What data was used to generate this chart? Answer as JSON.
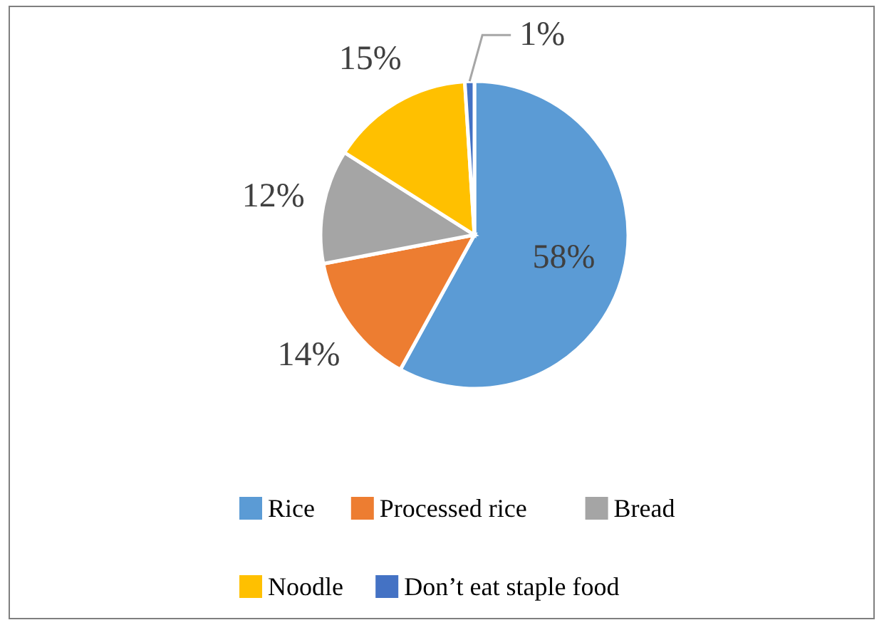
{
  "chart_data": {
    "type": "pie",
    "categories": [
      "Rice",
      "Processed rice",
      "Bread",
      "Noodle",
      "Don’t eat staple food"
    ],
    "values": [
      58,
      14,
      12,
      15,
      1
    ],
    "colors": [
      "#5b9bd5",
      "#ed7d31",
      "#a5a5a5",
      "#ffc000",
      "#4472c4"
    ],
    "value_labels": [
      "58%",
      "14%",
      "12%",
      "15%",
      "1%"
    ],
    "legend": "bottom"
  }
}
